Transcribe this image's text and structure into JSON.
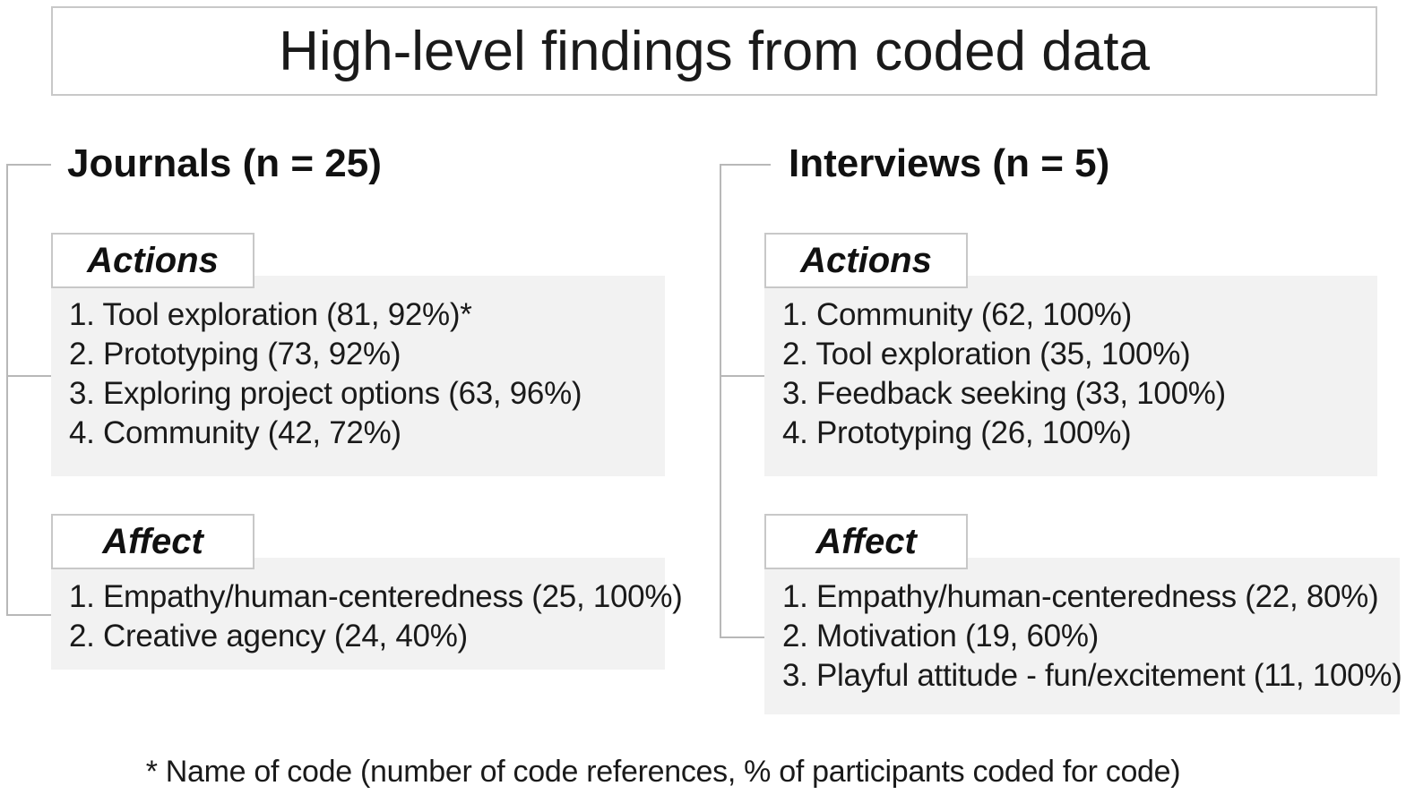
{
  "title": "High-level findings from coded data",
  "journals": {
    "heading": "Journals (n = 25)",
    "actions": {
      "label": "Actions",
      "items": [
        "1. Tool exploration (81, 92%)*",
        "2. Prototyping (73, 92%)",
        "3. Exploring project options (63, 96%)",
        "4. Community (42, 72%)"
      ]
    },
    "affect": {
      "label": "Affect",
      "items": [
        "1. Empathy/human-centeredness (25, 100%)",
        "2. Creative agency (24, 40%)"
      ]
    }
  },
  "interviews": {
    "heading": "Interviews (n = 5)",
    "actions": {
      "label": "Actions",
      "items": [
        "1. Community (62, 100%)",
        "2. Tool exploration (35, 100%)",
        "3. Feedback seeking (33, 100%)",
        "4. Prototyping (26, 100%)"
      ]
    },
    "affect": {
      "label": "Affect",
      "items": [
        "1. Empathy/human-centeredness (22, 80%)",
        "2. Motivation (19, 60%)",
        "3. Playful attitude - fun/excitement (11, 100%)"
      ]
    }
  },
  "footnote": "* Name of code (number of code references, % of participants coded for code)"
}
